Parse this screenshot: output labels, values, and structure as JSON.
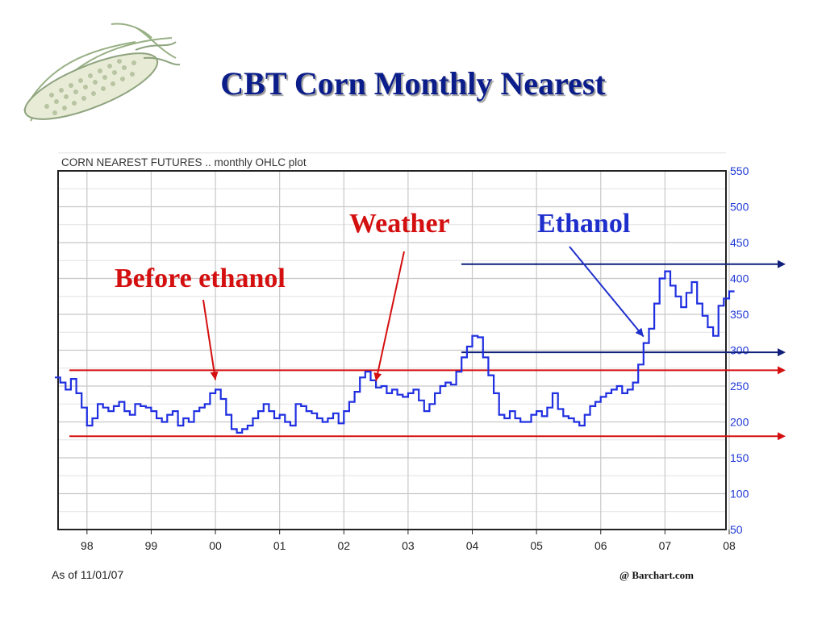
{
  "slide": {
    "title": "CBT Corn Monthly Nearest",
    "logo_icon": "corn-cob-icon"
  },
  "colors": {
    "title": "#0b1d8a",
    "price_line": "#1f2fe0",
    "red_annotation": "#d40f0f",
    "blue_annotation": "#1f2fcc",
    "navy_reference": "#10207a",
    "grid": "#c8c8c8"
  },
  "chart_data": {
    "type": "line",
    "title": "CORN NEAREST FUTURES .. monthly OHLC plot",
    "xlabel": "",
    "ylabel": "",
    "y_axis_side": "right",
    "ylim": [
      50,
      550
    ],
    "yticks": [
      50,
      100,
      150,
      200,
      250,
      300,
      350,
      400,
      450,
      500,
      550
    ],
    "x_range": [
      1997.55,
      2007.95
    ],
    "xticks": [
      {
        "year": 1998,
        "label": "98"
      },
      {
        "year": 1999,
        "label": "99"
      },
      {
        "year": 2000,
        "label": "00"
      },
      {
        "year": 2001,
        "label": "01"
      },
      {
        "year": 2002,
        "label": "02"
      },
      {
        "year": 2003,
        "label": "03"
      },
      {
        "year": 2004,
        "label": "04"
      },
      {
        "year": 2005,
        "label": "05"
      },
      {
        "year": 2006,
        "label": "06"
      },
      {
        "year": 2007,
        "label": "07"
      },
      {
        "year": 2008,
        "label": "08"
      }
    ],
    "grid": true,
    "series": [
      {
        "start": "1997-07",
        "values": [
          262,
          255,
          245,
          260,
          240,
          220,
          195,
          205,
          225,
          220,
          215,
          222,
          228,
          215,
          210,
          225,
          222,
          220,
          215,
          205,
          200,
          210,
          215,
          195,
          205,
          200,
          215,
          220,
          225,
          240,
          245,
          232,
          210,
          190,
          185,
          190,
          195,
          205,
          215,
          225,
          215,
          205,
          210,
          200,
          195,
          225,
          222,
          215,
          212,
          205,
          200,
          205,
          212,
          198,
          215,
          228,
          242,
          262,
          270,
          258,
          248,
          250,
          240,
          245,
          238,
          235,
          240,
          245,
          230,
          215,
          225,
          240,
          250,
          255,
          252,
          270,
          290,
          305,
          320,
          318,
          290,
          265,
          240,
          210,
          205,
          215,
          205,
          200,
          200,
          210,
          215,
          208,
          220,
          240,
          218,
          208,
          205,
          200,
          195,
          210,
          222,
          228,
          235,
          240,
          245,
          250,
          240,
          245,
          255,
          280,
          310,
          330,
          365,
          400,
          410,
          390,
          375,
          360,
          380,
          395,
          365,
          348,
          332,
          320,
          362,
          372,
          382
        ]
      }
    ],
    "reference_lines": [
      {
        "value": 272,
        "color": "red"
      },
      {
        "value": 180,
        "color": "red"
      },
      {
        "value": 420,
        "color": "navy"
      },
      {
        "value": 297,
        "color": "navy"
      }
    ],
    "annotations": [
      {
        "text": "Before ethanol",
        "color": "red",
        "points_to": "2000-01"
      },
      {
        "text": "Weather",
        "color": "red",
        "points_to": "2002-07"
      },
      {
        "text": "Ethanol",
        "color": "blue",
        "points_to": "2006-09"
      }
    ],
    "footer": {
      "as_of": "As of 11/01/07",
      "credit": "@ Barchart.com"
    }
  }
}
